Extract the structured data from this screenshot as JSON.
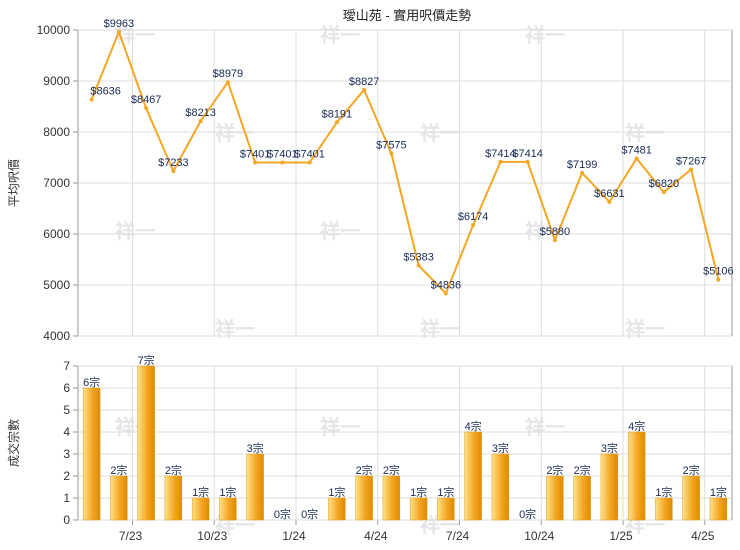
{
  "chart_data": [
    {
      "type": "line",
      "title": "璦山苑 - 實用呎價走勢",
      "ylabel": "平均呎價",
      "ylim": [
        4000,
        10000
      ],
      "yticks": [
        4000,
        5000,
        6000,
        7000,
        8000,
        9000,
        10000
      ],
      "grid": true,
      "color": "#f5a623",
      "series": [
        {
          "values": [
            8636,
            9963,
            8467,
            7233,
            8213,
            8979,
            7401,
            7401,
            7401,
            8191,
            8827,
            7575,
            5383,
            4836,
            6174,
            7414,
            7414,
            5880,
            7199,
            6631,
            7481,
            6820,
            7267,
            5106
          ],
          "labels": [
            "$8636",
            "$9963",
            "$8467",
            "$7233",
            "$8213",
            "$8979",
            "$7401",
            "$7401",
            "$7401",
            "$8191",
            "$8827",
            "$7575",
            "$5383",
            "$4836",
            "$6174",
            "$7414",
            "$7414",
            "$5880",
            "$7199",
            "$6631",
            "$7481",
            "$6820",
            "$7267",
            "$5106"
          ]
        }
      ]
    },
    {
      "type": "bar",
      "ylabel": "成交宗數",
      "ylim": [
        0,
        7
      ],
      "yticks": [
        0,
        1,
        2,
        3,
        4,
        5,
        6,
        7
      ],
      "grid": true,
      "color": "#f5a623",
      "values": [
        6,
        2,
        7,
        2,
        1,
        1,
        3,
        0,
        0,
        1,
        2,
        2,
        1,
        1,
        4,
        3,
        0,
        2,
        2,
        3,
        4,
        1,
        2,
        1
      ],
      "labels": [
        "6宗",
        "2宗",
        "7宗",
        "2宗",
        "1宗",
        "1宗",
        "3宗",
        "0宗",
        "0宗",
        "1宗",
        "2宗",
        "2宗",
        "1宗",
        "1宗",
        "4宗",
        "3宗",
        "0宗",
        "2宗",
        "2宗",
        "3宗",
        "4宗",
        "1宗",
        "2宗",
        "1宗"
      ],
      "x_tick_labels": [
        "7/23",
        "10/23",
        "1/24",
        "4/24",
        "7/24",
        "10/24",
        "1/25",
        "4/25"
      ]
    }
  ],
  "watermark": "祥一"
}
